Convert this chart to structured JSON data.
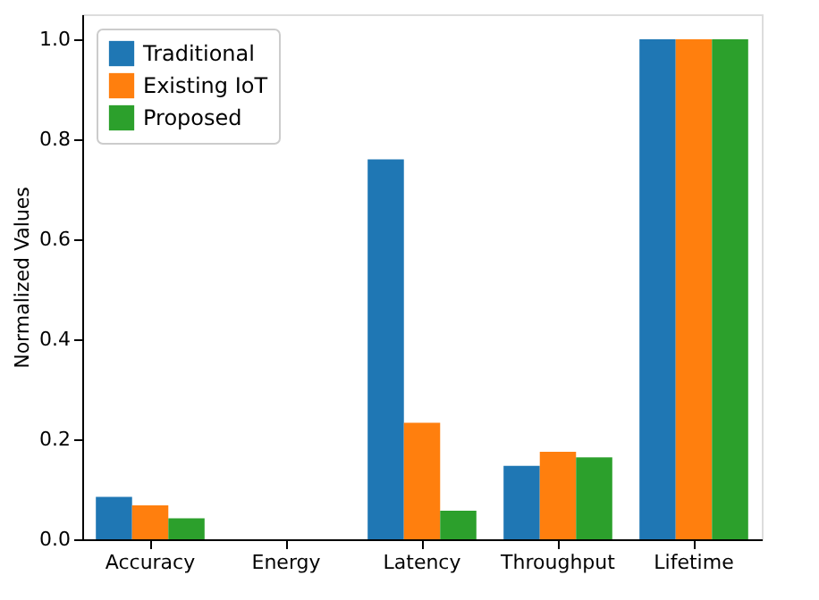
{
  "chart_data": {
    "type": "bar",
    "ylabel": "Normalized Values",
    "categories": [
      "Accuracy",
      "Energy",
      "Latency",
      "Throughput",
      "Lifetime"
    ],
    "series": [
      {
        "name": "Traditional",
        "color": "#1f77b4",
        "values": [
          0.085,
          0,
          0.76,
          0.147,
          1.0
        ]
      },
      {
        "name": "Existing IoT",
        "color": "#ff7f0e",
        "values": [
          0.068,
          0,
          0.233,
          0.175,
          1.0
        ]
      },
      {
        "name": "Proposed",
        "color": "#2ca02c",
        "values": [
          0.042,
          0,
          0.057,
          0.164,
          1.0
        ]
      }
    ],
    "ylim": [
      0,
      1.05
    ],
    "yticks": [
      {
        "value": 0,
        "label": "0.0"
      },
      {
        "value": 0.2,
        "label": "0.2"
      },
      {
        "value": 0.4,
        "label": "0.4"
      },
      {
        "value": 0.6,
        "label": "0.6"
      },
      {
        "value": 0.8,
        "label": "0.8"
      },
      {
        "value": 1.0,
        "label": "1.0"
      }
    ],
    "grid": false,
    "legend": "top left"
  }
}
